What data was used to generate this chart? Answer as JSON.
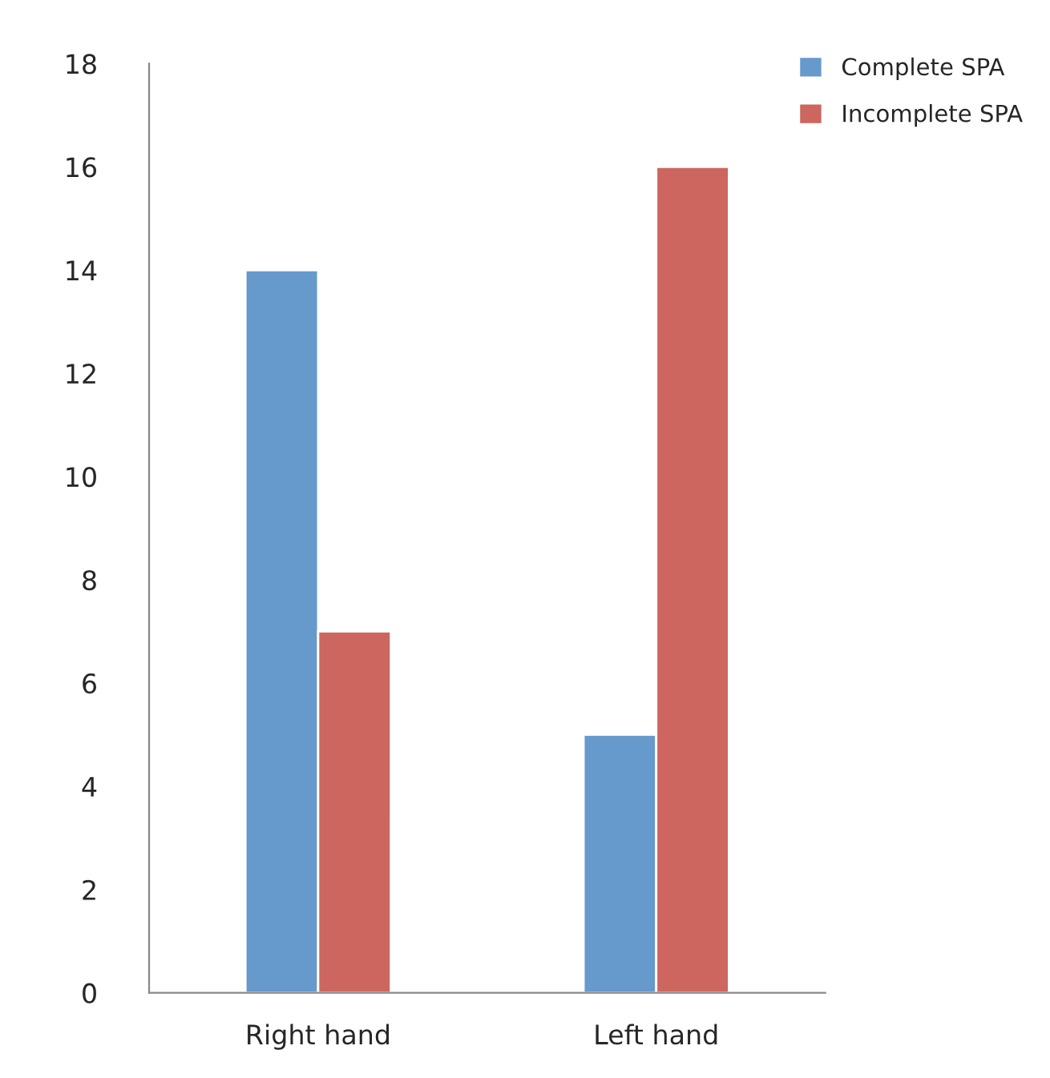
{
  "chart_data": {
    "type": "bar",
    "categories": [
      "Right hand",
      "Left hand"
    ],
    "series": [
      {
        "name": "Complete SPA",
        "color": "#6699cc",
        "values": [
          14,
          5
        ]
      },
      {
        "name": "Incomplete SPA",
        "color": "#cc665e",
        "values": [
          7,
          16
        ]
      }
    ],
    "ylim": [
      0,
      18
    ],
    "yticks": [
      0,
      2,
      4,
      6,
      8,
      10,
      12,
      14,
      16,
      18
    ],
    "grid": false,
    "legend": "top right"
  }
}
